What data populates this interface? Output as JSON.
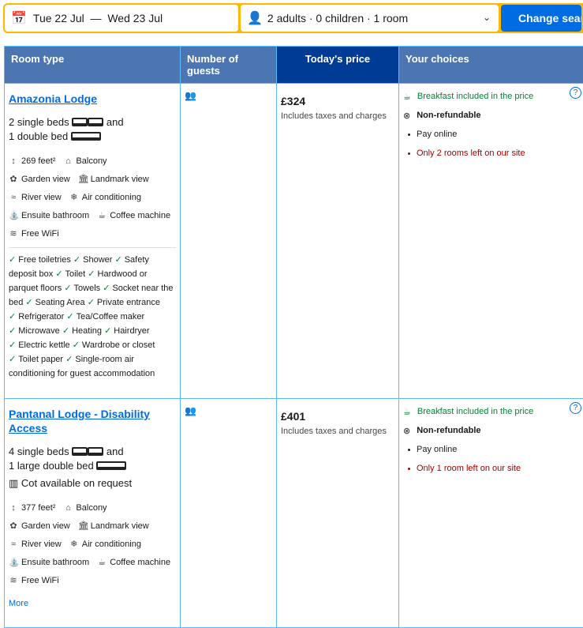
{
  "search": {
    "dates": "Tue 22 Jul  —  Wed 23 Jul",
    "guests": "2 adults · 0 children · 1 room",
    "button": "Change search"
  },
  "headers": [
    "Room type",
    "Number of guests",
    "Today's price",
    "Your choices"
  ],
  "colors": {
    "header": "#4c76b2",
    "price_header": "#003b95",
    "accent": "#006ce4",
    "search_border": "#ffb700"
  },
  "rooms": [
    {
      "name": "Amazonia Lodge",
      "beds1": "2 single beds",
      "beds_and": "and",
      "beds2": "1 double bed",
      "cot": "",
      "facilities": [
        {
          "icon": "area-icon",
          "label": "269 feet²"
        },
        {
          "icon": "balcony-icon",
          "label": "Balcony"
        },
        {
          "icon": "garden-icon",
          "label": "Garden view"
        },
        {
          "icon": "landmark-icon",
          "label": "Landmark view"
        },
        {
          "icon": "river-icon",
          "label": "River view"
        },
        {
          "icon": "snowflake-icon",
          "label": "Air conditioning"
        },
        {
          "icon": "bathroom-icon",
          "label": "Ensuite bathroom"
        },
        {
          "icon": "coffee-icon",
          "label": "Coffee machine"
        },
        {
          "icon": "wifi-icon",
          "label": "Free WiFi"
        }
      ],
      "amenities": [
        "Free toiletries",
        "Shower",
        "Safety deposit box",
        "Toilet",
        "Hardwood or parquet floors",
        "Towels",
        "Socket near the bed",
        "Seating Area",
        "Private entrance",
        "Refrigerator",
        "Tea/Coffee maker",
        "Microwave",
        "Heating",
        "Hairdryer",
        "Electric kettle",
        "Wardrobe or closet",
        "Toilet paper",
        "Single-room air conditioning for guest accommodation"
      ],
      "price": "£324",
      "tax": "Includes taxes and charges",
      "breakfast": "Breakfast included in the price",
      "refund": "Non-refundable",
      "pay": "Pay online",
      "left": "Only 2 rooms left on our site",
      "more": ""
    },
    {
      "name": "Pantanal Lodge - Disability Access",
      "beds1": "4 single beds",
      "beds_and": "and",
      "beds2": "1 large double bed",
      "cot": "Cot available on request",
      "facilities": [
        {
          "icon": "area-icon",
          "label": "377 feet²"
        },
        {
          "icon": "balcony-icon",
          "label": "Balcony"
        },
        {
          "icon": "garden-icon",
          "label": "Garden view"
        },
        {
          "icon": "landmark-icon",
          "label": "Landmark view"
        },
        {
          "icon": "river-icon",
          "label": "River view"
        },
        {
          "icon": "snowflake-icon",
          "label": "Air conditioning"
        },
        {
          "icon": "bathroom-icon",
          "label": "Ensuite bathroom"
        },
        {
          "icon": "coffee-icon",
          "label": "Coffee machine"
        },
        {
          "icon": "wifi-icon",
          "label": "Free WiFi"
        }
      ],
      "amenities": [],
      "price": "£401",
      "tax": "Includes taxes and charges",
      "breakfast": "Breakfast included in the price",
      "refund": "Non-refundable",
      "pay": "Pay online",
      "left": "Only 1 room left on our site",
      "more": "More"
    }
  ]
}
